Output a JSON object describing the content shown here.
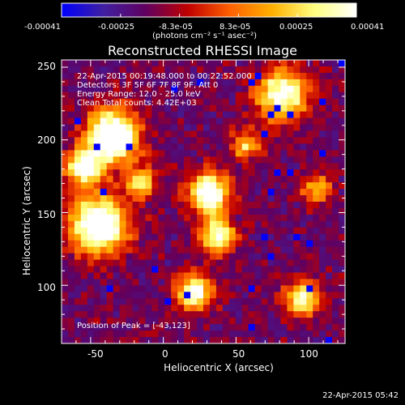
{
  "colorbar": {
    "tick_labels": [
      "-0.00041",
      "-0.00025",
      "-8.3e-05",
      "8.3e-05",
      "0.00025",
      "0.00041"
    ],
    "units": "(photons cm⁻² s⁻¹ asec⁻²)",
    "colormap": [
      "#0000ff",
      "#4020a0",
      "#600060",
      "#c00000",
      "#ff6000",
      "#ffb000",
      "#ffff80",
      "#ffffff"
    ]
  },
  "plot": {
    "title": "Reconstructed RHESSI Image",
    "annotations": [
      "22-Apr-2015 00:19:48.000 to 00:22:52.000",
      "Detectors: 3F 5F 6F 7F 8F 9F, Att 0",
      "Energy Range: 12.0 - 25.0 keV",
      "Clean     Total counts: 4.42E+03"
    ],
    "peak_label": "Position of Peak = [-43,123]",
    "xlabel": "Heliocentric X (arcsec)",
    "ylabel": "Heliocentric Y (arcsec)",
    "x_ticks": [
      "-50",
      "0",
      "50",
      "100"
    ],
    "y_ticks": [
      "100",
      "150",
      "200",
      "250"
    ]
  },
  "footer": {
    "timestamp": "22-Apr-2015 05:42"
  }
}
